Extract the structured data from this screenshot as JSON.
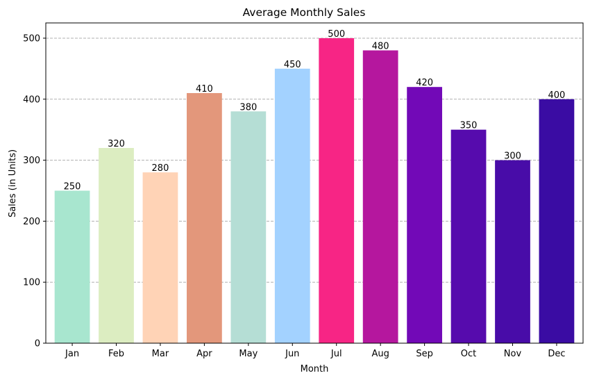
{
  "chart_data": {
    "type": "bar",
    "title": "Average Monthly Sales",
    "xlabel": "Month",
    "ylabel": "Sales (in Units)",
    "categories": [
      "Jan",
      "Feb",
      "Mar",
      "Apr",
      "May",
      "Jun",
      "Jul",
      "Aug",
      "Sep",
      "Oct",
      "Nov",
      "Dec"
    ],
    "values": [
      250,
      320,
      280,
      410,
      380,
      450,
      500,
      480,
      420,
      350,
      300,
      400
    ],
    "colors": [
      "#a8e6cf",
      "#dcedc1",
      "#ffd3b6",
      "#e3977b",
      "#b5ded5",
      "#a3d2ff",
      "#f72585",
      "#b5179e",
      "#7209b7",
      "#560bad",
      "#480ca8",
      "#3a0ca3"
    ],
    "ylim": [
      0,
      525
    ],
    "yticks": [
      0,
      100,
      200,
      300,
      400,
      500
    ],
    "grid": "y-dashed",
    "data_labels": true
  }
}
